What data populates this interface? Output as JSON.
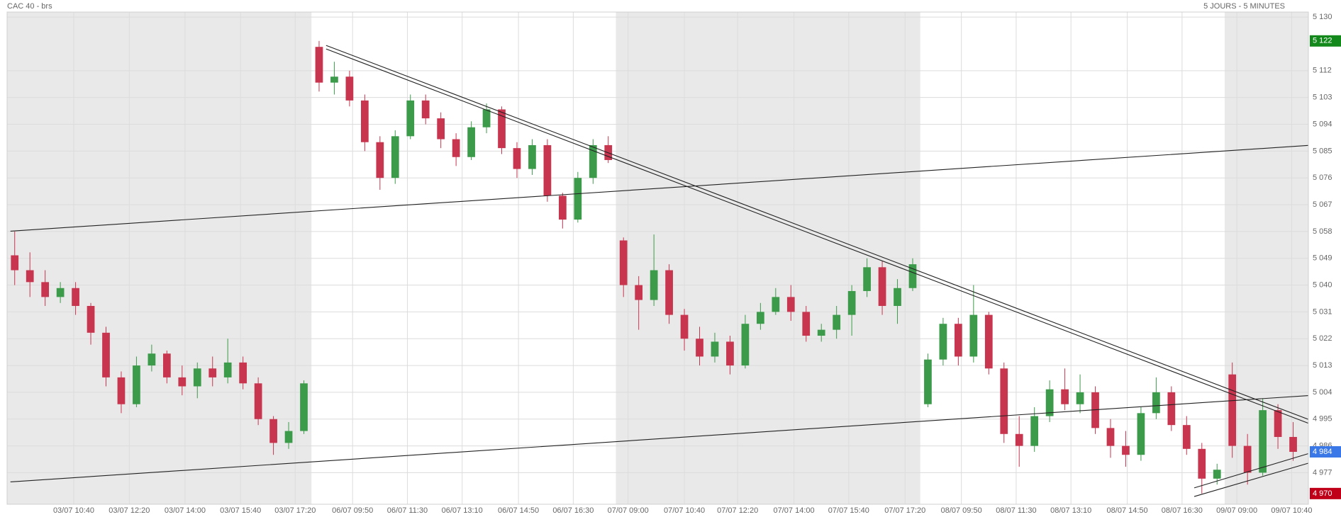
{
  "chart_data": {
    "type": "candlestick",
    "title": "CAC 40 - brs",
    "subtitle": "5 JOURS - 5 MINUTES",
    "up_color": "#3c9b4a",
    "down_color": "#c8354f",
    "grid": true,
    "xlim": [
      -0.5,
      85
    ],
    "ylim": [
      4966.4,
      5131.7
    ],
    "xticks": [
      {
        "value": 3.88,
        "label": "03/07 10:40"
      },
      {
        "value": 7.53,
        "label": "03/07 12:20"
      },
      {
        "value": 11.19,
        "label": "03/07 14:00"
      },
      {
        "value": 14.84,
        "label": "03/07 15:40"
      },
      {
        "value": 18.43,
        "label": "03/07 17:20"
      },
      {
        "value": 22.2,
        "label": "06/07 09:50"
      },
      {
        "value": 25.8,
        "label": "06/07 11:30"
      },
      {
        "value": 29.4,
        "label": "06/07 13:10"
      },
      {
        "value": 33.1,
        "label": "06/07 14:50"
      },
      {
        "value": 36.7,
        "label": "06/07 16:30"
      },
      {
        "value": 40.3,
        "label": "07/07 09:00"
      },
      {
        "value": 44.0,
        "label": "07/07 10:40"
      },
      {
        "value": 47.5,
        "label": "07/07 12:20"
      },
      {
        "value": 51.2,
        "label": "07/07 14:00"
      },
      {
        "value": 54.8,
        "label": "07/07 15:40"
      },
      {
        "value": 58.5,
        "label": "07/07 17:20"
      },
      {
        "value": 62.2,
        "label": "08/07 09:50"
      },
      {
        "value": 65.8,
        "label": "08/07 11:30"
      },
      {
        "value": 69.4,
        "label": "08/07 13:10"
      },
      {
        "value": 73.1,
        "label": "08/07 14:50"
      },
      {
        "value": 76.7,
        "label": "08/07 16:30"
      },
      {
        "value": 80.3,
        "label": "09/07 09:00"
      },
      {
        "value": 83.9,
        "label": "09/07 10:40"
      }
    ],
    "yticks": [
      {
        "value": 5130,
        "label": "5 130"
      },
      {
        "value": 5112,
        "label": "5 112"
      },
      {
        "value": 5103,
        "label": "5 103"
      },
      {
        "value": 5094,
        "label": "5 094"
      },
      {
        "value": 5085,
        "label": "5 085"
      },
      {
        "value": 5076,
        "label": "5 076"
      },
      {
        "value": 5067,
        "label": "5 067"
      },
      {
        "value": 5058,
        "label": "5 058"
      },
      {
        "value": 5049,
        "label": "5 049"
      },
      {
        "value": 5040,
        "label": "5 040"
      },
      {
        "value": 5031,
        "label": "5 031"
      },
      {
        "value": 5022,
        "label": "5 022"
      },
      {
        "value": 5013,
        "label": "5 013"
      },
      {
        "value": 5004,
        "label": "5 004"
      },
      {
        "value": 4995,
        "label": "4 995"
      },
      {
        "value": 4986,
        "label": "4 986"
      },
      {
        "value": 4977,
        "label": "4 977"
      }
    ],
    "candles": [
      [
        5050,
        5058,
        5040,
        5045
      ],
      [
        5045,
        5051,
        5036,
        5041
      ],
      [
        5041,
        5045,
        5033,
        5036
      ],
      [
        5036,
        5041,
        5034,
        5039
      ],
      [
        5039,
        5041,
        5030,
        5033
      ],
      [
        5033,
        5034,
        5020,
        5024
      ],
      [
        5024,
        5026,
        5006,
        5009
      ],
      [
        5009,
        5011,
        4997,
        5000
      ],
      [
        5000,
        5016,
        4999,
        5013
      ],
      [
        5013,
        5020,
        5011,
        5017
      ],
      [
        5017,
        5018,
        5007,
        5009
      ],
      [
        5009,
        5013,
        5003,
        5006
      ],
      [
        5006,
        5014,
        5002,
        5012
      ],
      [
        5012,
        5016,
        5006,
        5009
      ],
      [
        5009,
        5022,
        5007,
        5014
      ],
      [
        5014,
        5016,
        5005,
        5007
      ],
      [
        5007,
        5009,
        4993,
        4995
      ],
      [
        4995,
        4996,
        4983,
        4987
      ],
      [
        4987,
        4994,
        4985,
        4991
      ],
      [
        4991,
        5008,
        4990,
        5007
      ],
      [
        5120,
        5122,
        5105,
        5108
      ],
      [
        5108,
        5115,
        5104,
        5110
      ],
      [
        5110,
        5112,
        5100,
        5102
      ],
      [
        5102,
        5104,
        5085,
        5088
      ],
      [
        5088,
        5090,
        5072,
        5076
      ],
      [
        5076,
        5092,
        5074,
        5090
      ],
      [
        5090,
        5104,
        5089,
        5102
      ],
      [
        5102,
        5104,
        5094,
        5096
      ],
      [
        5096,
        5098,
        5086,
        5089
      ],
      [
        5089,
        5091,
        5080,
        5083
      ],
      [
        5083,
        5095,
        5082,
        5093
      ],
      [
        5093,
        5101,
        5091,
        5099
      ],
      [
        5099,
        5100,
        5084,
        5086
      ],
      [
        5086,
        5088,
        5076,
        5079
      ],
      [
        5079,
        5089,
        5077,
        5087
      ],
      [
        5087,
        5089,
        5068,
        5070
      ],
      [
        5070,
        5071,
        5059,
        5062
      ],
      [
        5062,
        5078,
        5061,
        5076
      ],
      [
        5076,
        5089,
        5074,
        5087
      ],
      [
        5087,
        5090,
        5081,
        5082
      ],
      [
        5055,
        5056,
        5036,
        5040
      ],
      [
        5040,
        5043,
        5025,
        5035
      ],
      [
        5035,
        5057,
        5033,
        5045
      ],
      [
        5045,
        5047,
        5027,
        5030
      ],
      [
        5030,
        5032,
        5018,
        5022
      ],
      [
        5022,
        5026,
        5013,
        5016
      ],
      [
        5016,
        5024,
        5014,
        5021
      ],
      [
        5021,
        5023,
        5010,
        5013
      ],
      [
        5013,
        5030,
        5012,
        5027
      ],
      [
        5027,
        5034,
        5025,
        5031
      ],
      [
        5031,
        5039,
        5030,
        5036
      ],
      [
        5036,
        5040,
        5028,
        5031
      ],
      [
        5031,
        5033,
        5021,
        5023
      ],
      [
        5023,
        5027,
        5021,
        5025
      ],
      [
        5025,
        5033,
        5022,
        5030
      ],
      [
        5030,
        5040,
        5023,
        5038
      ],
      [
        5038,
        5049,
        5036,
        5046
      ],
      [
        5046,
        5048,
        5030,
        5033
      ],
      [
        5033,
        5042,
        5027,
        5039
      ],
      [
        5039,
        5049,
        5038,
        5047
      ],
      [
        5000,
        5017,
        4999,
        5015
      ],
      [
        5015,
        5029,
        5013,
        5027
      ],
      [
        5027,
        5029,
        5013,
        5016
      ],
      [
        5016,
        5040,
        5014,
        5030
      ],
      [
        5030,
        5031,
        5010,
        5012
      ],
      [
        5012,
        5014,
        4987,
        4990
      ],
      [
        4990,
        4996,
        4979,
        4986
      ],
      [
        4986,
        4999,
        4984,
        4996
      ],
      [
        4996,
        5008,
        4994,
        5005
      ],
      [
        5005,
        5012,
        4998,
        5000
      ],
      [
        5000,
        5010,
        4997,
        5004
      ],
      [
        5004,
        5006,
        4990,
        4992
      ],
      [
        4992,
        4995,
        4982,
        4986
      ],
      [
        4986,
        4991,
        4979,
        4983
      ],
      [
        4983,
        4999,
        4981,
        4997
      ],
      [
        4997,
        5009,
        4995,
        5004
      ],
      [
        5004,
        5006,
        4991,
        4993
      ],
      [
        4993,
        4996,
        4983,
        4985
      ],
      [
        4985,
        4987,
        4970,
        4975
      ],
      [
        4975,
        4980,
        4973,
        4978
      ],
      [
        5010,
        5014,
        4982,
        4986
      ],
      [
        4986,
        4990,
        4973,
        4977
      ],
      [
        4977,
        5002,
        4976,
        4998
      ],
      [
        4998,
        5000,
        4985,
        4989
      ],
      [
        4989,
        4994,
        4981,
        4984
      ]
    ],
    "trendlines": [
      {
        "x": [
          -0.28,
          85.0
        ],
        "y": [
          5058.1,
          5086.9
        ]
      },
      {
        "x": [
          -0.28,
          85.0
        ],
        "y": [
          4973.9,
          5002.9
        ]
      },
      {
        "x": [
          20.46,
          85.0
        ],
        "y": [
          5120.5,
          4994.9
        ]
      },
      {
        "x": [
          20.46,
          85.0
        ],
        "y": [
          5119.3,
          4993.6
        ]
      },
      {
        "x": [
          77.5,
          85.0
        ],
        "y": [
          4971.9,
          4983.4
        ]
      },
      {
        "x": [
          77.5,
          85.0
        ],
        "y": [
          4969.0,
          4980.2
        ]
      }
    ],
    "price_labels": [
      {
        "value": 5122,
        "label": "5 122",
        "color": "#12891a"
      },
      {
        "value": 4984,
        "label": "4 984",
        "color": "#3b78e7"
      },
      {
        "value": 4970,
        "label": "4 970",
        "color": "#c00018"
      }
    ]
  }
}
